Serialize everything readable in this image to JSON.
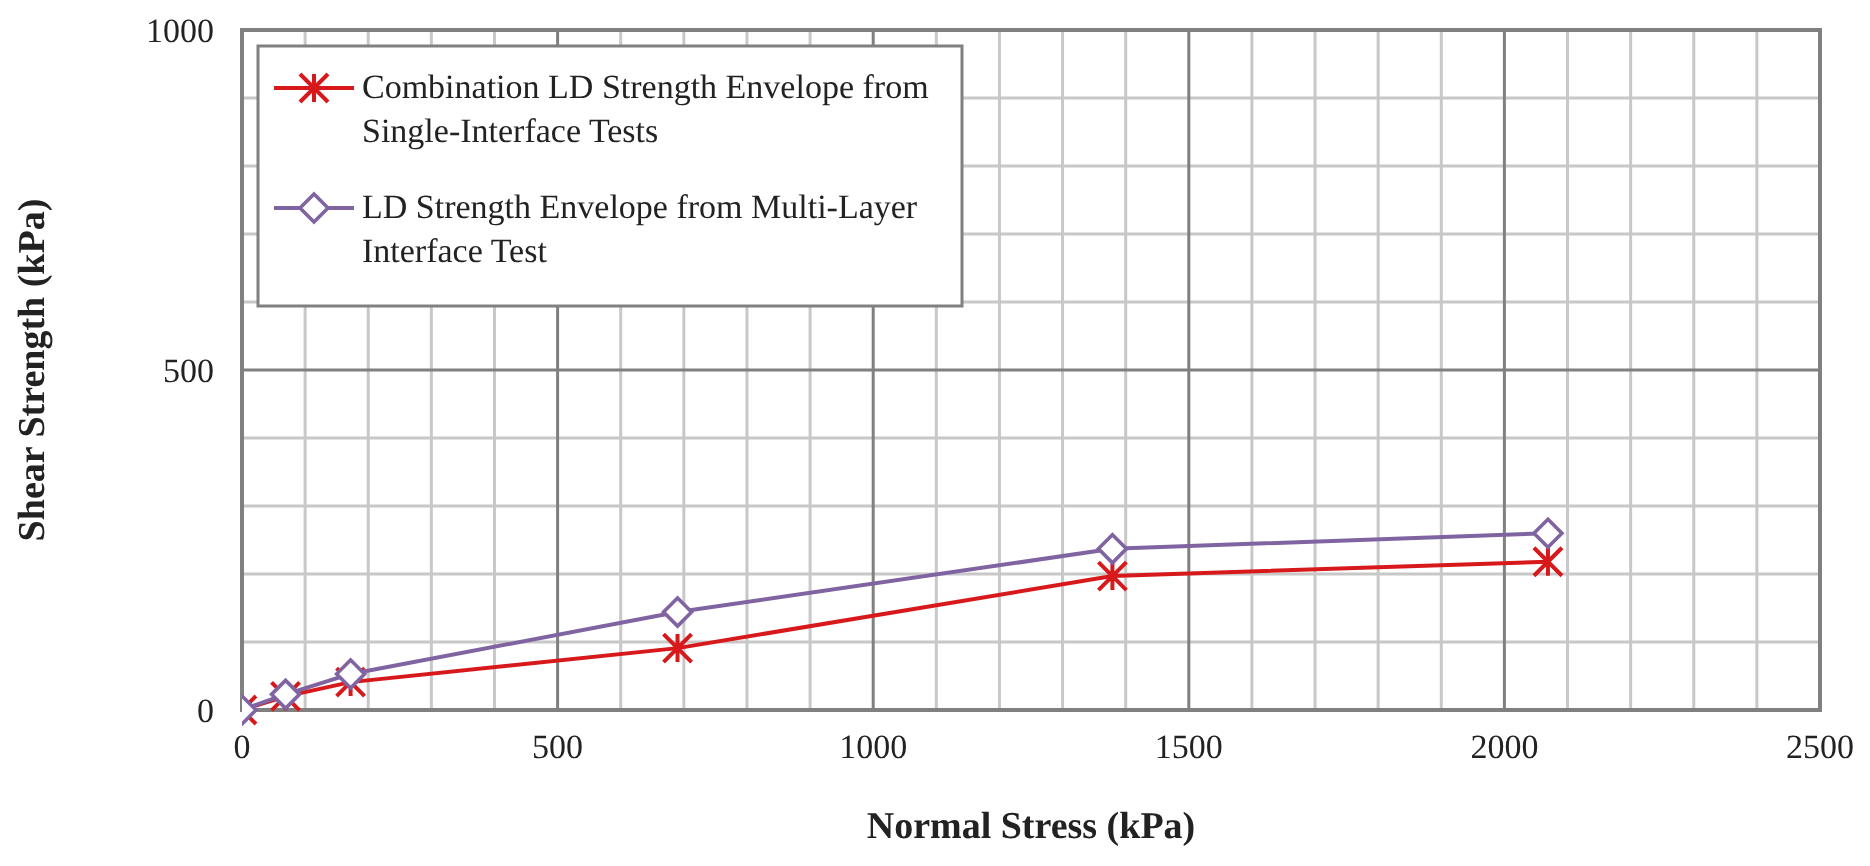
{
  "chart_data": {
    "type": "line",
    "xlabel": "Normal Stress (kPa)",
    "ylabel": "Shear Strength (kPa)",
    "xlim": [
      0,
      2500
    ],
    "xticks": [
      0,
      500,
      1000,
      1500,
      2000,
      2500
    ],
    "ylim": [
      0,
      1000
    ],
    "yticks": [
      0,
      500,
      1000
    ],
    "grid": true,
    "legend": "top left",
    "line_style": "solid",
    "series": [
      {
        "name": "Combination LD Strength Envelope from Single-Interface Tests",
        "color": "#d7191c",
        "marker": "cross",
        "x": [
          0,
          69,
          172,
          690,
          1379,
          2069
        ],
        "values": [
          0,
          20,
          41,
          91,
          197,
          218
        ]
      },
      {
        "name": "LD Strength Envelope from Multi-Layer Interface Test",
        "color": "#8064a2",
        "marker": "diamond",
        "x": [
          0,
          69,
          172,
          690,
          1379,
          2069
        ],
        "values": [
          0,
          23,
          53,
          144,
          237,
          260
        ]
      }
    ]
  }
}
